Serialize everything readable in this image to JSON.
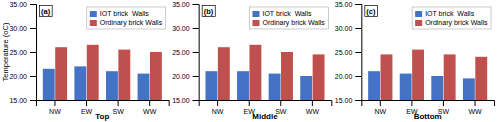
{
  "chart_data": [
    {
      "type": "bar",
      "xlabel": "Top",
      "ylabel": "Temperature (oC)",
      "annotations": [
        "(a)"
      ],
      "categories": [
        "NW",
        "EW",
        "SW",
        "WW"
      ],
      "series": [
        {
          "name": "IOT brick  Walls",
          "color": "#4472C4",
          "values": [
            21.5,
            22.0,
            21.0,
            20.5
          ]
        },
        {
          "name": "Ordinary brick Walls",
          "color": "#C0504D",
          "values": [
            26.0,
            26.5,
            25.5,
            25.0
          ]
        }
      ],
      "ylim": [
        15.0,
        35.0
      ],
      "yticks": [
        {
          "value": 15.0,
          "label": "15.00"
        },
        {
          "value": 20.0,
          "label": "20.00"
        },
        {
          "value": 25.0,
          "label": "25.00"
        },
        {
          "value": 30.0,
          "label": "30.00"
        },
        {
          "value": 35.0,
          "label": "35.00"
        }
      ],
      "legend": "upper right",
      "grid": false
    },
    {
      "type": "bar",
      "xlabel": "Middle",
      "annotations": [
        "(b)"
      ],
      "categories": [
        "NW",
        "EW",
        "SW",
        "WW"
      ],
      "series": [
        {
          "name": "IOT brick  Walls",
          "color": "#4472C4",
          "values": [
            21.0,
            21.0,
            20.5,
            20.0
          ]
        },
        {
          "name": "Ordinary brick Walls",
          "color": "#C0504D",
          "values": [
            26.0,
            26.5,
            25.0,
            24.5
          ]
        }
      ],
      "ylim": [
        15.0,
        35.0
      ],
      "yticks": [
        {
          "value": 15.0,
          "label": "15.00"
        },
        {
          "value": 20.0,
          "label": "20.00"
        },
        {
          "value": 25.0,
          "label": "25.00"
        },
        {
          "value": 30.0,
          "label": "30.00"
        },
        {
          "value": 35.0,
          "label": "35.00"
        }
      ],
      "legend": "upper right",
      "grid": false
    },
    {
      "type": "bar",
      "xlabel": "Bottom",
      "annotations": [
        "(c)"
      ],
      "categories": [
        "NW",
        "EW",
        "SW",
        "WW"
      ],
      "series": [
        {
          "name": "IOT brick  Walls",
          "color": "#4472C4",
          "values": [
            21.0,
            20.5,
            20.0,
            19.5
          ]
        },
        {
          "name": "Ordinary brick Walls",
          "color": "#C0504D",
          "values": [
            24.5,
            25.5,
            24.5,
            24.0
          ]
        }
      ],
      "ylim": [
        15.0,
        35.0
      ],
      "yticks": [
        {
          "value": 15.0,
          "label": "15.00"
        },
        {
          "value": 20.0,
          "label": "20.00"
        },
        {
          "value": 25.0,
          "label": "25.00"
        },
        {
          "value": 30.0,
          "label": "30.00"
        },
        {
          "value": 35.0,
          "label": "35.00"
        }
      ],
      "legend": "upper right",
      "grid": false
    }
  ]
}
